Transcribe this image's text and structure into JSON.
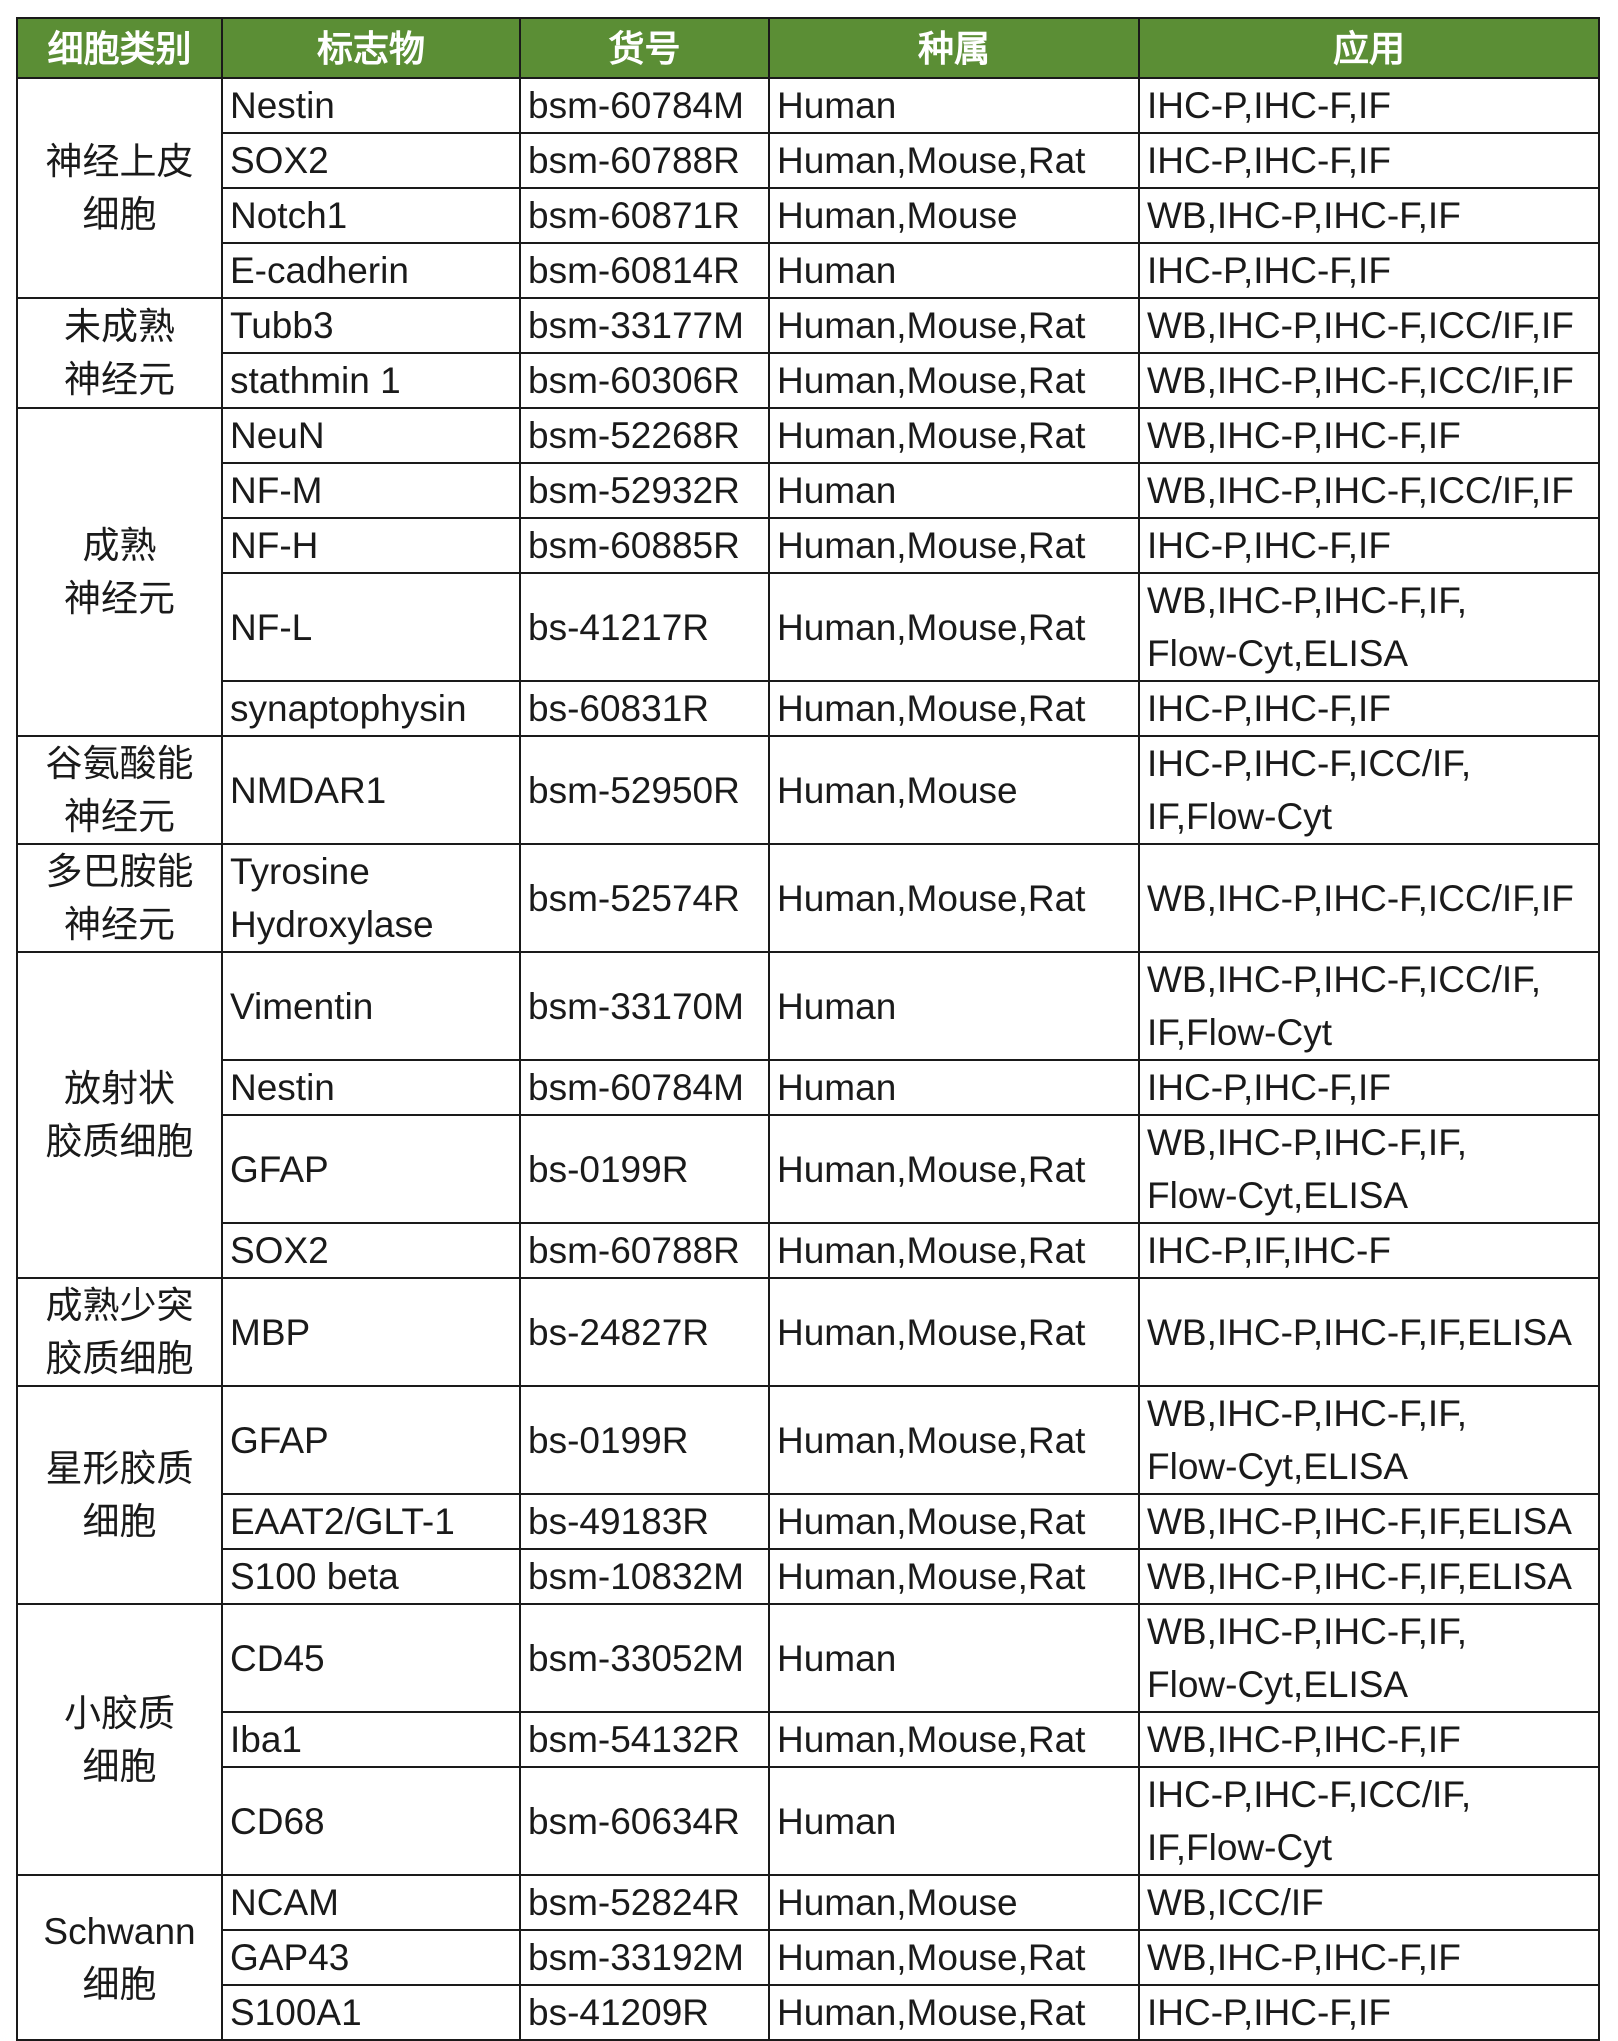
{
  "header_color": "#5b8e35",
  "headers": [
    "细胞类别",
    "标志物",
    "货号",
    "种属",
    "应用"
  ],
  "groups": [
    {
      "category": "神经上皮\n细胞",
      "rows": [
        {
          "marker": "Nestin",
          "catalog": "bsm-60784M",
          "species": "Human",
          "application": "IHC-P,IHC-F,IF",
          "lines": 1
        },
        {
          "marker": "SOX2",
          "catalog": "bsm-60788R",
          "species": "Human,Mouse,Rat",
          "application": "IHC-P,IHC-F,IF",
          "lines": 1
        },
        {
          "marker": "Notch1",
          "catalog": "bsm-60871R",
          "species": "Human,Mouse",
          "application": "WB,IHC-P,IHC-F,IF",
          "lines": 1
        },
        {
          "marker": "E-cadherin",
          "catalog": "bsm-60814R",
          "species": "Human",
          "application": "IHC-P,IHC-F,IF",
          "lines": 1
        }
      ]
    },
    {
      "category": "未成熟\n神经元",
      "rows": [
        {
          "marker": "Tubb3",
          "catalog": "bsm-33177M",
          "species": "Human,Mouse,Rat",
          "application": "WB,IHC-P,IHC-F,ICC/IF,IF",
          "lines": 1
        },
        {
          "marker": "stathmin 1",
          "catalog": "bsm-60306R",
          "species": "Human,Mouse,Rat",
          "application": "WB,IHC-P,IHC-F,ICC/IF,IF",
          "lines": 1
        }
      ]
    },
    {
      "category": "成熟\n神经元",
      "rows": [
        {
          "marker": "NeuN",
          "catalog": "bsm-52268R",
          "species": "Human,Mouse,Rat",
          "application": "WB,IHC-P,IHC-F,IF",
          "lines": 1
        },
        {
          "marker": "NF-M",
          "catalog": "bsm-52932R",
          "species": "Human",
          "application": "WB,IHC-P,IHC-F,ICC/IF,IF",
          "lines": 1
        },
        {
          "marker": "NF-H",
          "catalog": "bsm-60885R",
          "species": "Human,Mouse,Rat",
          "application": "IHC-P,IHC-F,IF",
          "lines": 1
        },
        {
          "marker": "NF-L",
          "catalog": "bs-41217R",
          "species": "Human,Mouse,Rat",
          "application": "WB,IHC-P,IHC-F,IF,\nFlow-Cyt,ELISA",
          "lines": 2
        },
        {
          "marker": "synaptophysin",
          "catalog": "bs-60831R",
          "species": "Human,Mouse,Rat",
          "application": "IHC-P,IHC-F,IF",
          "lines": 1
        }
      ]
    },
    {
      "category": "谷氨酸能\n神经元",
      "rows": [
        {
          "marker": "NMDAR1",
          "catalog": "bsm-52950R",
          "species": "Human,Mouse",
          "application": "IHC-P,IHC-F,ICC/IF,\nIF,Flow-Cyt",
          "lines": 2
        }
      ]
    },
    {
      "category": "多巴胺能\n神经元",
      "rows": [
        {
          "marker": "Tyrosine\nHydroxylase",
          "catalog": "bsm-52574R",
          "species": "Human,Mouse,Rat",
          "application": "WB,IHC-P,IHC-F,ICC/IF,IF",
          "lines": 2
        }
      ]
    },
    {
      "category": "放射状\n胶质细胞",
      "rows": [
        {
          "marker": "Vimentin",
          "catalog": "bsm-33170M",
          "species": "Human",
          "application": "WB,IHC-P,IHC-F,ICC/IF,\nIF,Flow-Cyt",
          "lines": 2
        },
        {
          "marker": "Nestin",
          "catalog": "bsm-60784M",
          "species": "Human",
          "application": "IHC-P,IHC-F,IF",
          "lines": 1
        },
        {
          "marker": "GFAP",
          "catalog": "bs-0199R",
          "species": "Human,Mouse,Rat",
          "application": "WB,IHC-P,IHC-F,IF,\nFlow-Cyt,ELISA",
          "lines": 2
        },
        {
          "marker": "SOX2",
          "catalog": "bsm-60788R",
          "species": "Human,Mouse,Rat",
          "application": "IHC-P,IF,IHC-F",
          "lines": 1
        }
      ]
    },
    {
      "category": "成熟少突\n胶质细胞",
      "rows": [
        {
          "marker": "MBP",
          "catalog": "bs-24827R",
          "species": "Human,Mouse,Rat",
          "application": "WB,IHC-P,IHC-F,IF,ELISA",
          "lines": 2
        }
      ]
    },
    {
      "category": "星形胶质\n细胞",
      "rows": [
        {
          "marker": "GFAP",
          "catalog": "bs-0199R",
          "species": "Human,Mouse,Rat",
          "application": "WB,IHC-P,IHC-F,IF,\nFlow-Cyt,ELISA",
          "lines": 2
        },
        {
          "marker": "EAAT2/GLT-1",
          "catalog": "bs-49183R",
          "species": "Human,Mouse,Rat",
          "application": "WB,IHC-P,IHC-F,IF,ELISA",
          "lines": 1
        },
        {
          "marker": "S100 beta",
          "catalog": "bsm-10832M",
          "species": "Human,Mouse,Rat",
          "application": "WB,IHC-P,IHC-F,IF,ELISA",
          "lines": 1
        }
      ]
    },
    {
      "category": "小胶质\n细胞",
      "rows": [
        {
          "marker": "CD45",
          "catalog": "bsm-33052M",
          "species": "Human",
          "application": "WB,IHC-P,IHC-F,IF,\nFlow-Cyt,ELISA",
          "lines": 2
        },
        {
          "marker": "Iba1",
          "catalog": "bsm-54132R",
          "species": "Human,Mouse,Rat",
          "application": "WB,IHC-P,IHC-F,IF",
          "lines": 1
        },
        {
          "marker": "CD68",
          "catalog": "bsm-60634R",
          "species": "Human",
          "application": "IHC-P,IHC-F,ICC/IF,\nIF,Flow-Cyt",
          "lines": 2
        }
      ]
    },
    {
      "category": "Schwann\n细胞",
      "rows": [
        {
          "marker": "NCAM",
          "catalog": "bsm-52824R",
          "species": "Human,Mouse",
          "application": "WB,ICC/IF",
          "lines": 1
        },
        {
          "marker": "GAP43",
          "catalog": "bsm-33192M",
          "species": "Human,Mouse,Rat",
          "application": "WB,IHC-P,IHC-F,IF",
          "lines": 1
        },
        {
          "marker": "S100A1",
          "catalog": "bs-41209R",
          "species": "Human,Mouse,Rat",
          "application": "IHC-P,IHC-F,IF",
          "lines": 1
        }
      ]
    }
  ]
}
